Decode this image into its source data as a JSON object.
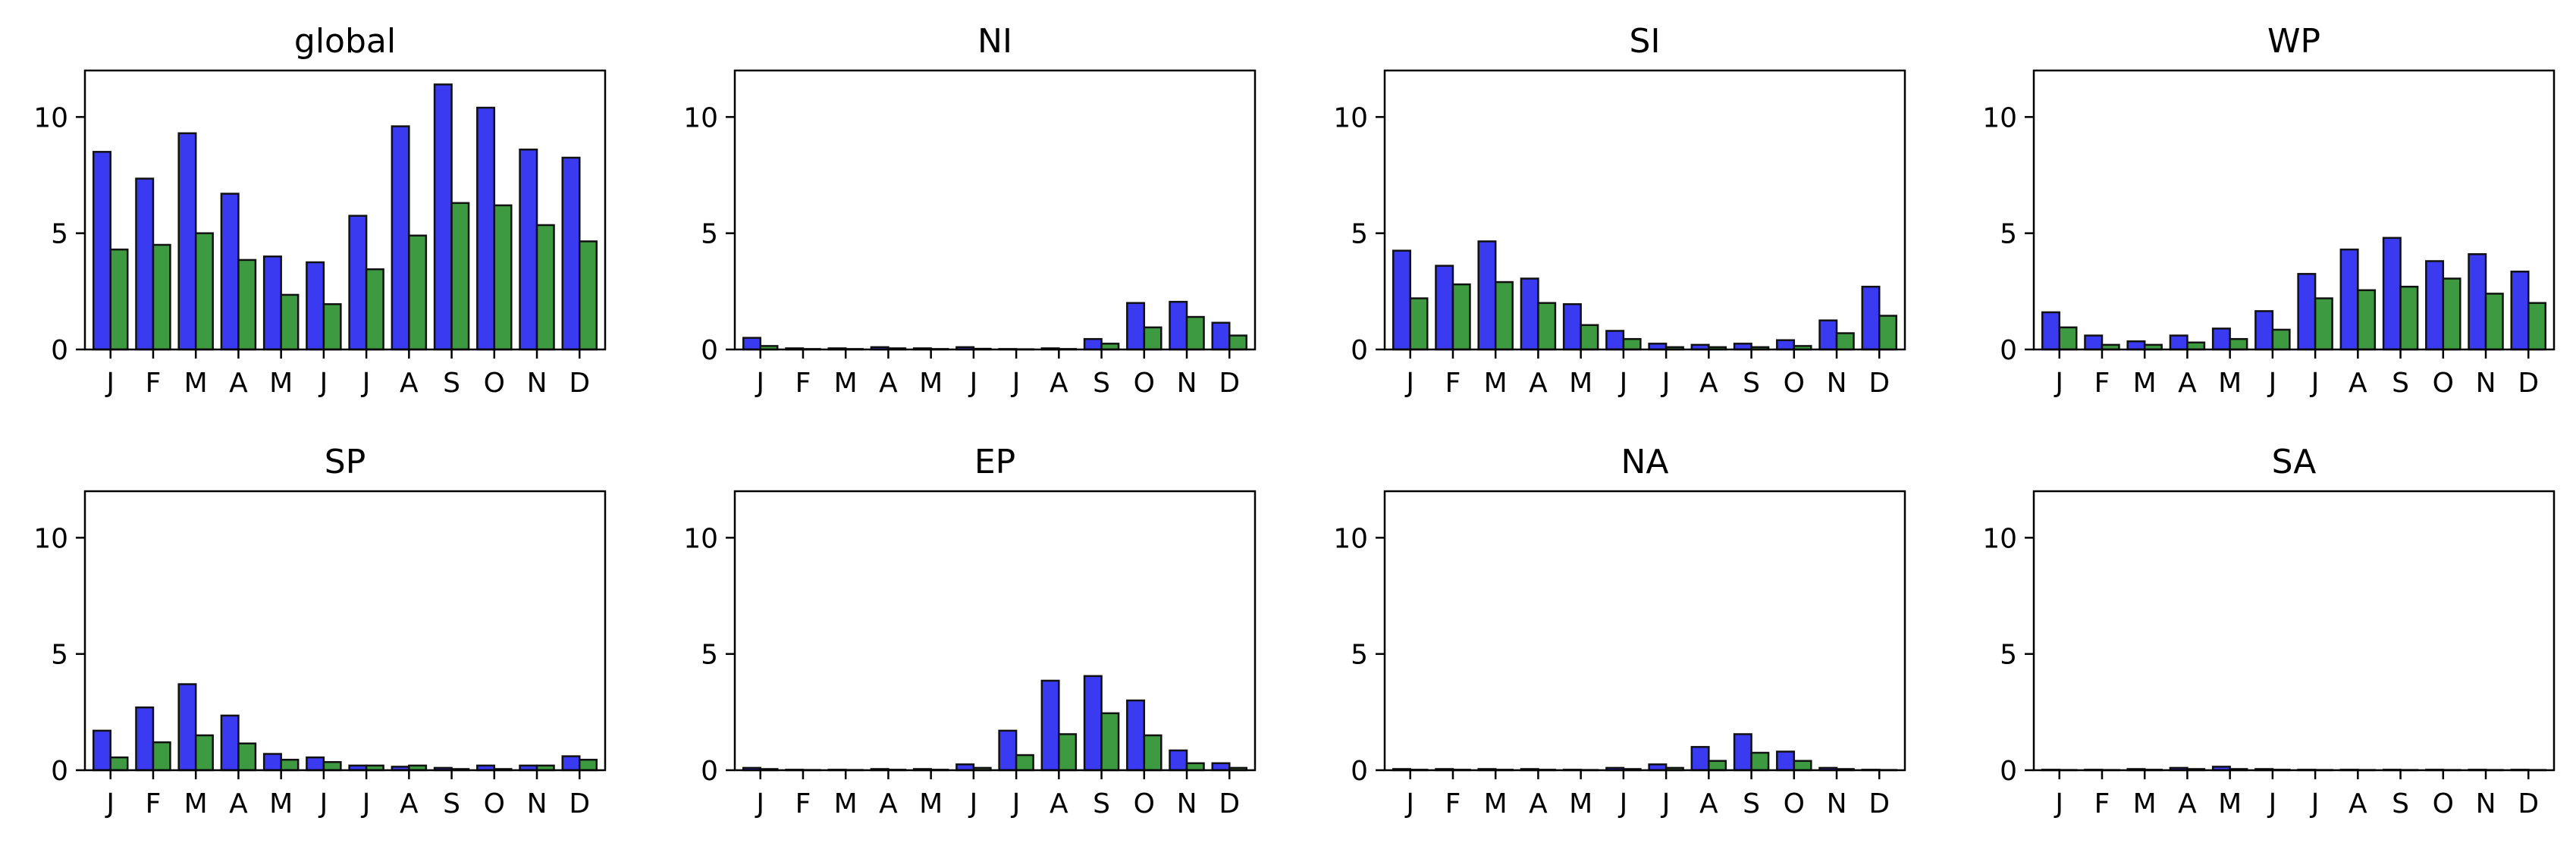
{
  "colors": {
    "series_a": "#3a3af0",
    "series_b": "#3e9a40",
    "edge": "#111111"
  },
  "chart_data": [
    {
      "type": "bar",
      "title": "global",
      "categories": [
        "J",
        "F",
        "M",
        "A",
        "M",
        "J",
        "J",
        "A",
        "S",
        "O",
        "N",
        "D"
      ],
      "ylim": [
        0,
        12
      ],
      "yticks": [
        0,
        5,
        10
      ],
      "series": [
        {
          "values": [
            8.5,
            7.35,
            9.3,
            6.7,
            4.0,
            3.75,
            5.75,
            9.6,
            11.4,
            10.4,
            8.6,
            8.25
          ]
        },
        {
          "values": [
            4.3,
            4.5,
            5.0,
            3.85,
            2.35,
            1.95,
            3.45,
            4.9,
            6.3,
            6.2,
            5.35,
            4.65
          ]
        }
      ]
    },
    {
      "type": "bar",
      "title": "NI",
      "categories": [
        "J",
        "F",
        "M",
        "A",
        "M",
        "J",
        "J",
        "A",
        "S",
        "O",
        "N",
        "D"
      ],
      "ylim": [
        0,
        12
      ],
      "yticks": [
        0,
        5,
        10
      ],
      "series": [
        {
          "values": [
            0.5,
            0.05,
            0.05,
            0.1,
            0.05,
            0.1,
            0.02,
            0.05,
            0.45,
            2.0,
            2.05,
            1.15
          ]
        },
        {
          "values": [
            0.15,
            0.02,
            0.02,
            0.05,
            0.02,
            0.03,
            0.01,
            0.02,
            0.25,
            0.95,
            1.4,
            0.6
          ]
        }
      ]
    },
    {
      "type": "bar",
      "title": "SI",
      "categories": [
        "J",
        "F",
        "M",
        "A",
        "M",
        "J",
        "J",
        "A",
        "S",
        "O",
        "N",
        "D"
      ],
      "ylim": [
        0,
        12
      ],
      "yticks": [
        0,
        5,
        10
      ],
      "series": [
        {
          "values": [
            4.25,
            3.6,
            4.65,
            3.05,
            1.95,
            0.8,
            0.25,
            0.2,
            0.25,
            0.4,
            1.25,
            2.7
          ]
        },
        {
          "values": [
            2.2,
            2.8,
            2.9,
            2.0,
            1.05,
            0.45,
            0.1,
            0.1,
            0.1,
            0.15,
            0.7,
            1.45
          ]
        }
      ]
    },
    {
      "type": "bar",
      "title": "WP",
      "categories": [
        "J",
        "F",
        "M",
        "A",
        "M",
        "J",
        "J",
        "A",
        "S",
        "O",
        "N",
        "D"
      ],
      "ylim": [
        0,
        12
      ],
      "yticks": [
        0,
        5,
        10
      ],
      "series": [
        {
          "values": [
            1.6,
            0.6,
            0.35,
            0.6,
            0.9,
            1.65,
            3.25,
            4.3,
            4.8,
            3.8,
            4.1,
            3.35
          ]
        },
        {
          "values": [
            0.95,
            0.2,
            0.2,
            0.3,
            0.45,
            0.85,
            2.2,
            2.55,
            2.7,
            3.05,
            2.4,
            2.0
          ]
        }
      ]
    },
    {
      "type": "bar",
      "title": "SP",
      "categories": [
        "J",
        "F",
        "M",
        "A",
        "M",
        "J",
        "J",
        "A",
        "S",
        "O",
        "N",
        "D"
      ],
      "ylim": [
        0,
        12
      ],
      "yticks": [
        0,
        5,
        10
      ],
      "series": [
        {
          "values": [
            1.7,
            2.7,
            3.7,
            2.35,
            0.7,
            0.55,
            0.2,
            0.15,
            0.1,
            0.2,
            0.2,
            0.6
          ]
        },
        {
          "values": [
            0.55,
            1.2,
            1.5,
            1.15,
            0.45,
            0.35,
            0.2,
            0.2,
            0.05,
            0.05,
            0.2,
            0.45
          ]
        }
      ]
    },
    {
      "type": "bar",
      "title": "EP",
      "categories": [
        "J",
        "F",
        "M",
        "A",
        "M",
        "J",
        "J",
        "A",
        "S",
        "O",
        "N",
        "D"
      ],
      "ylim": [
        0,
        12
      ],
      "yticks": [
        0,
        5,
        10
      ],
      "series": [
        {
          "values": [
            0.1,
            0.02,
            0.02,
            0.05,
            0.05,
            0.25,
            1.7,
            3.85,
            4.05,
            3.0,
            0.85,
            0.3
          ]
        },
        {
          "values": [
            0.05,
            0.01,
            0.01,
            0.02,
            0.02,
            0.1,
            0.65,
            1.55,
            2.45,
            1.5,
            0.3,
            0.1
          ]
        }
      ]
    },
    {
      "type": "bar",
      "title": "NA",
      "categories": [
        "J",
        "F",
        "M",
        "A",
        "M",
        "J",
        "J",
        "A",
        "S",
        "O",
        "N",
        "D"
      ],
      "ylim": [
        0,
        12
      ],
      "yticks": [
        0,
        5,
        10
      ],
      "series": [
        {
          "values": [
            0.05,
            0.05,
            0.05,
            0.05,
            0.02,
            0.1,
            0.25,
            1.0,
            1.55,
            0.8,
            0.1,
            0.02
          ]
        },
        {
          "values": [
            0.02,
            0.02,
            0.02,
            0.02,
            0.01,
            0.05,
            0.1,
            0.4,
            0.75,
            0.4,
            0.05,
            0.01
          ]
        }
      ]
    },
    {
      "type": "bar",
      "title": "SA",
      "categories": [
        "J",
        "F",
        "M",
        "A",
        "M",
        "J",
        "J",
        "A",
        "S",
        "O",
        "N",
        "D"
      ],
      "ylim": [
        0,
        12
      ],
      "yticks": [
        0,
        5,
        10
      ],
      "series": [
        {
          "values": [
            0.02,
            0.02,
            0.05,
            0.1,
            0.15,
            0.05,
            0.02,
            0.02,
            0.02,
            0.02,
            0.02,
            0.02
          ]
        },
        {
          "values": [
            0.01,
            0.01,
            0.02,
            0.05,
            0.05,
            0.02,
            0.01,
            0.01,
            0.01,
            0.01,
            0.01,
            0.01
          ]
        }
      ]
    }
  ]
}
